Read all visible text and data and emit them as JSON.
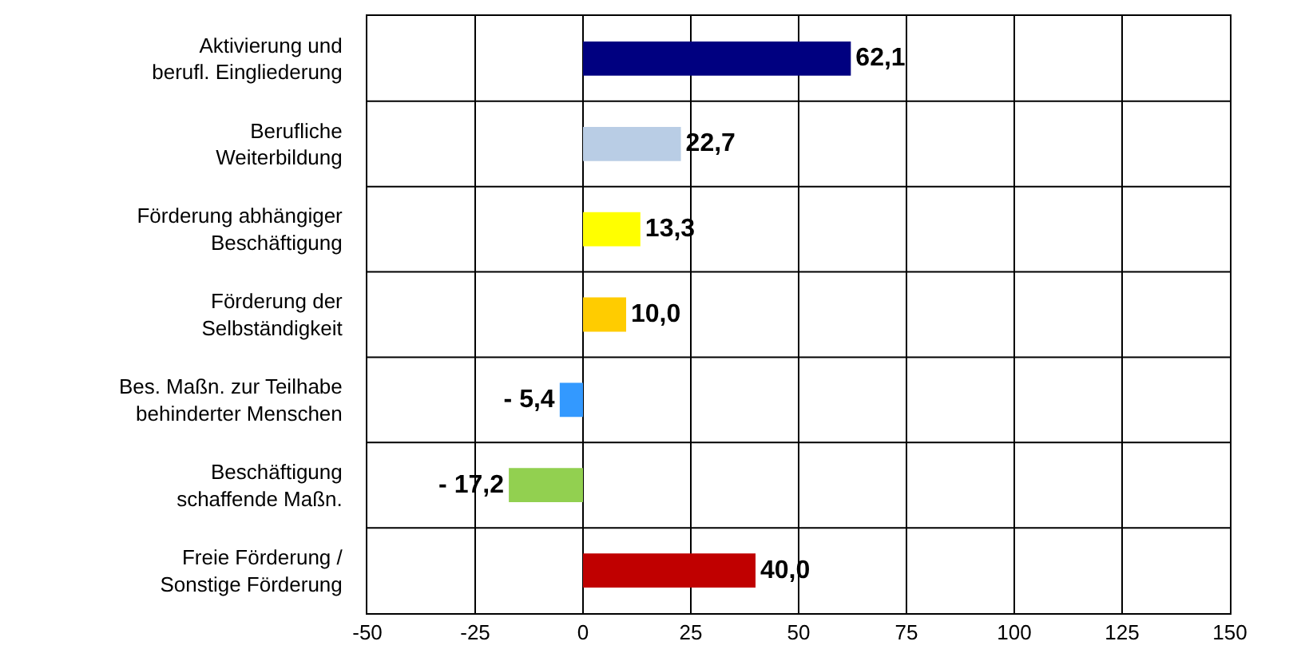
{
  "chart_data": {
    "type": "bar",
    "orientation": "horizontal",
    "categories": [
      "Aktivierung und\nberufl. Eingliederung",
      "Berufliche\nWeiterbildung",
      "Förderung abhängiger\nBeschäftigung",
      "Förderung der\nSelbständigkeit",
      "Bes. Maßn. zur Teilhabe\nbehinderter Menschen",
      "Beschäftigung\nschaffende Maßn.",
      "Freie Förderung /\nSonstige Förderung"
    ],
    "values": [
      62.1,
      22.7,
      13.3,
      10.0,
      -5.4,
      -17.2,
      40.0
    ],
    "colors": [
      "#000080",
      "#b9cde5",
      "#ffff00",
      "#ffcc00",
      "#3399ff",
      "#92d050",
      "#c00000"
    ],
    "value_labels": [
      "62,1",
      "22,7",
      "13,3",
      "10,0",
      "- 5,4",
      "- 17,2",
      "40,0"
    ],
    "xlim": [
      -50,
      150
    ],
    "xticks": [
      -50,
      -25,
      0,
      25,
      50,
      75,
      100,
      125,
      150
    ],
    "grid": true
  }
}
